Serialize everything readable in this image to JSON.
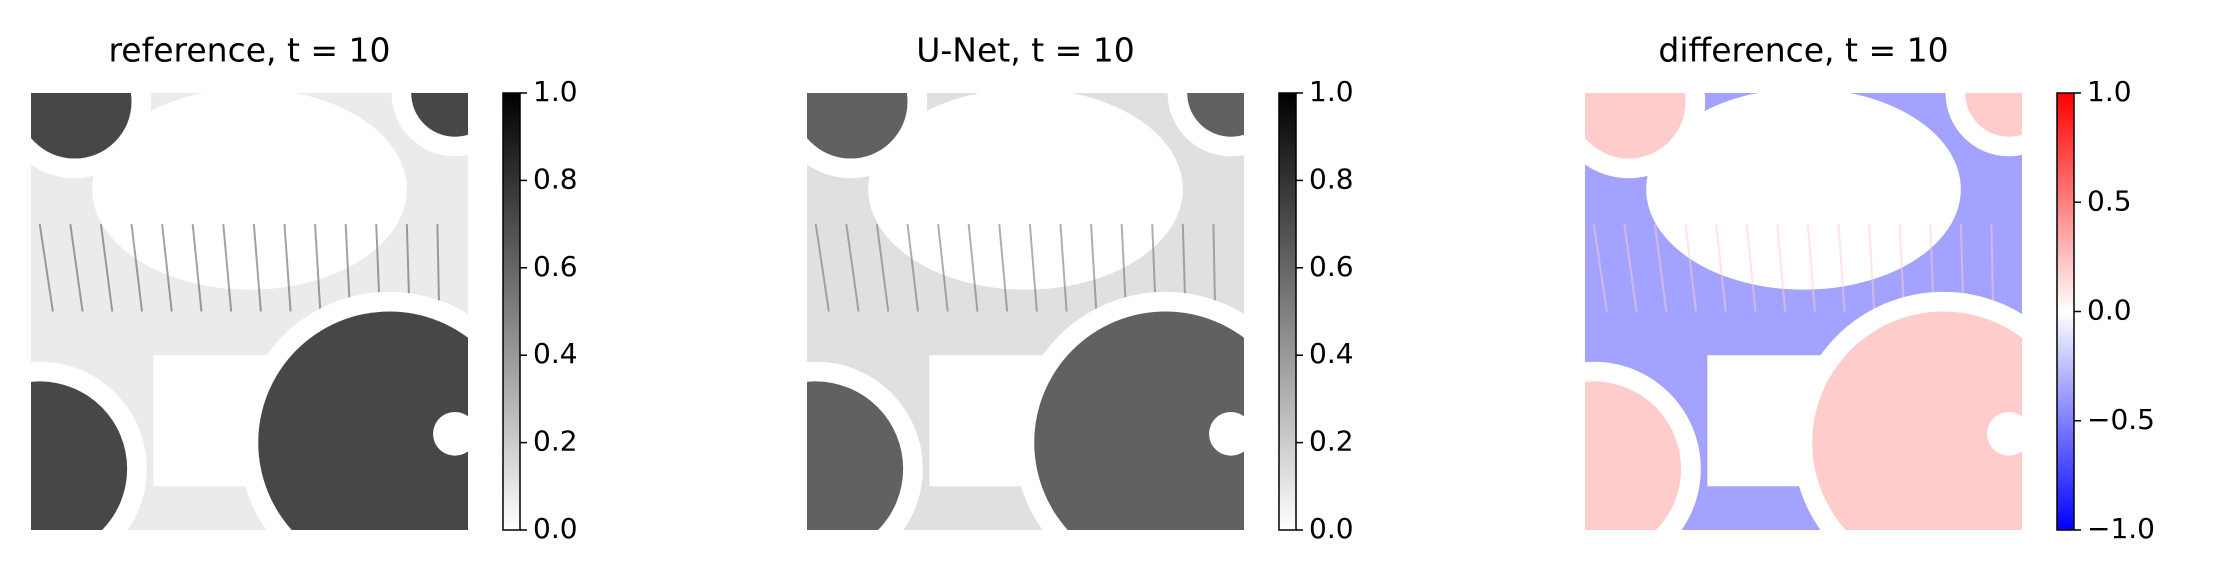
{
  "chart_data": [
    {
      "type": "heatmap",
      "title": "reference, t = 10",
      "colorbar": {
        "colors": [
          "#ffffff",
          "#000000"
        ],
        "clim": [
          0,
          1
        ],
        "ticks": [
          {
            "value": 0,
            "label": "0.0"
          },
          0.2,
          0.4,
          0.6,
          0.8,
          {
            "value": 1,
            "label": "1.0"
          }
        ]
      }
    },
    {
      "type": "heatmap",
      "title": "U-Net, t = 10",
      "colorbar": {
        "colors": [
          "#ffffff",
          "#000000"
        ],
        "clim": [
          0,
          1
        ],
        "ticks": [
          {
            "value": 0,
            "label": "0.0"
          },
          0.2,
          0.4,
          0.6,
          0.8,
          {
            "value": 1,
            "label": "1.0"
          }
        ]
      }
    },
    {
      "type": "heatmap",
      "title": "difference, t = 10",
      "colorbar": {
        "colors": [
          "#0000ff",
          "#ffffff",
          "#ff0000"
        ],
        "clim": [
          -1,
          1
        ],
        "ticks": [
          {
            "value": -1,
            "label": "−1.0"
          },
          {
            "value": -0.5,
            "label": "−0.5"
          },
          {
            "value": 0,
            "label": "0.0"
          },
          0.5,
          {
            "value": 1,
            "label": "1.0"
          }
        ]
      }
    }
  ]
}
